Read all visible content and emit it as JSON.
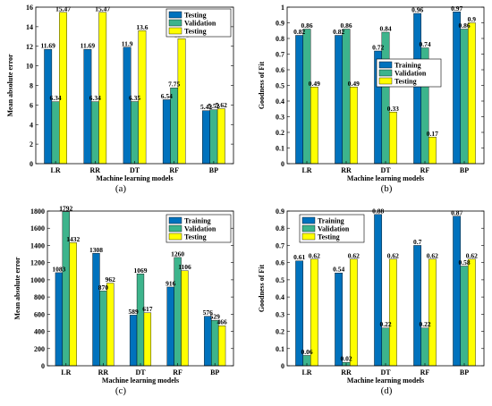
{
  "colors": {
    "series1": "#0072BD",
    "series2": "#3DB48C",
    "series3": "#FFFF00"
  },
  "chart_data": [
    {
      "type": "bar",
      "caption": "(a)",
      "xlabel": "Machine learning models",
      "ylabel": "Mean absolute error",
      "categories": [
        "LR",
        "RR",
        "DT",
        "RF",
        "BP"
      ],
      "ylim": [
        0,
        16
      ],
      "yticks": [
        0,
        2,
        4,
        6,
        8,
        10,
        12,
        14,
        16
      ],
      "legend_position": "top-right",
      "series": [
        {
          "name": "Testing",
          "values": [
            11.69,
            11.69,
            11.9,
            6.54,
            5.42
          ]
        },
        {
          "name": "Validation",
          "values": [
            6.34,
            6.34,
            6.35,
            7.75,
            5.52
          ]
        },
        {
          "name": "Testing",
          "values": [
            15.47,
            15.47,
            13.6,
            12.78,
            5.62
          ]
        }
      ]
    },
    {
      "type": "bar",
      "caption": "(b)",
      "xlabel": "Machine learning models",
      "ylabel": "Goodness of Fit",
      "categories": [
        "LR",
        "RR",
        "DT",
        "RF",
        "BP"
      ],
      "ylim": [
        0,
        1
      ],
      "yticks": [
        0,
        0.1,
        0.2,
        0.3,
        0.4,
        0.5,
        0.6,
        0.7,
        0.8,
        0.9,
        1
      ],
      "legend_position": "middle-right",
      "series": [
        {
          "name": "Training",
          "values": [
            0.82,
            0.82,
            0.72,
            0.96,
            0.97
          ]
        },
        {
          "name": "Validation",
          "values": [
            0.86,
            0.86,
            0.84,
            0.74,
            0.86
          ]
        },
        {
          "name": "Testing",
          "values": [
            0.49,
            0.49,
            0.33,
            0.17,
            0.9
          ]
        }
      ]
    },
    {
      "type": "bar",
      "caption": "(c)",
      "xlabel": "Machine learning models",
      "ylabel": "Mean absolute error",
      "categories": [
        "LR",
        "RR",
        "DT",
        "RF",
        "BP"
      ],
      "ylim": [
        0,
        1800
      ],
      "yticks": [
        0,
        200,
        400,
        600,
        800,
        1000,
        1200,
        1400,
        1600,
        1800
      ],
      "legend_position": "top-right",
      "series": [
        {
          "name": "Training",
          "values": [
            1083,
            1308,
            589,
            916,
            576
          ]
        },
        {
          "name": "Validation",
          "values": [
            1792,
            870,
            1069,
            1260,
            529
          ]
        },
        {
          "name": "Testing",
          "values": [
            1432,
            962,
            617,
            1106,
            466
          ]
        }
      ]
    },
    {
      "type": "bar",
      "caption": "(d)",
      "xlabel": "Machine learning models",
      "ylabel": "Goodness of Fit",
      "categories": [
        "LR",
        "RR",
        "DT",
        "RF",
        "BP"
      ],
      "ylim": [
        0,
        0.9
      ],
      "yticks": [
        0,
        0.1,
        0.2,
        0.3,
        0.4,
        0.5,
        0.6,
        0.7,
        0.8,
        0.9
      ],
      "legend_position": "top-left",
      "series": [
        {
          "name": "Training",
          "values": [
            0.61,
            0.54,
            0.88,
            0.7,
            0.87
          ]
        },
        {
          "name": "Validation",
          "values": [
            0.06,
            0.02,
            0.22,
            0.22,
            0.58
          ]
        },
        {
          "name": "Testing",
          "values": [
            0.62,
            0.62,
            0.62,
            0.62,
            0.62
          ]
        }
      ]
    }
  ]
}
